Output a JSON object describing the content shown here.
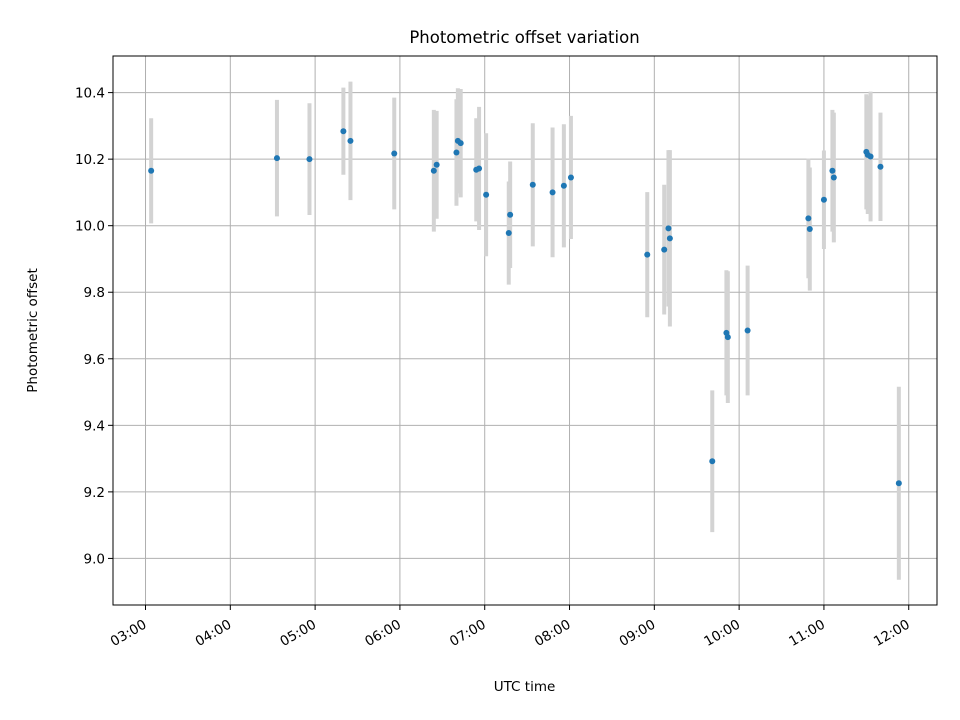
{
  "chart_data": {
    "type": "scatter",
    "title": "Photometric offset variation",
    "xlabel": "UTC time",
    "ylabel": "Photometric offset",
    "x_ticks": [
      "03:00",
      "04:00",
      "05:00",
      "06:00",
      "07:00",
      "08:00",
      "09:00",
      "10:00",
      "11:00",
      "12:00"
    ],
    "y_ticks": [
      "9.0",
      "9.2",
      "9.4",
      "9.6",
      "9.8",
      "10.0",
      "10.2",
      "10.4"
    ],
    "xlim": [
      "02:37",
      "12:20"
    ],
    "ylim": [
      8.86,
      10.51
    ],
    "grid": true,
    "point_color": "#1f77b4",
    "errorbar_color": "#d3d3d3",
    "points": [
      {
        "t": "03:04",
        "y": 10.165,
        "err": 0.158
      },
      {
        "t": "04:33",
        "y": 10.203,
        "err": 0.175
      },
      {
        "t": "04:56",
        "y": 10.2,
        "err": 0.168
      },
      {
        "t": "05:20",
        "y": 10.284,
        "err": 0.131
      },
      {
        "t": "05:25",
        "y": 10.255,
        "err": 0.178
      },
      {
        "t": "05:56",
        "y": 10.217,
        "err": 0.168
      },
      {
        "t": "06:24",
        "y": 10.165,
        "err": 0.183
      },
      {
        "t": "06:26",
        "y": 10.183,
        "err": 0.162
      },
      {
        "t": "06:40",
        "y": 10.22,
        "err": 0.16
      },
      {
        "t": "06:41",
        "y": 10.255,
        "err": 0.158
      },
      {
        "t": "06:43",
        "y": 10.248,
        "err": 0.163
      },
      {
        "t": "06:54",
        "y": 10.168,
        "err": 0.155
      },
      {
        "t": "06:56",
        "y": 10.172,
        "err": 0.185
      },
      {
        "t": "07:01",
        "y": 10.093,
        "err": 0.185
      },
      {
        "t": "07:17",
        "y": 9.978,
        "err": 0.155
      },
      {
        "t": "07:18",
        "y": 10.033,
        "err": 0.16
      },
      {
        "t": "07:34",
        "y": 10.123,
        "err": 0.185
      },
      {
        "t": "07:48",
        "y": 10.1,
        "err": 0.195
      },
      {
        "t": "07:56",
        "y": 10.12,
        "err": 0.185
      },
      {
        "t": "08:01",
        "y": 10.145,
        "err": 0.185
      },
      {
        "t": "08:55",
        "y": 9.913,
        "err": 0.188
      },
      {
        "t": "09:07",
        "y": 9.928,
        "err": 0.195
      },
      {
        "t": "09:10",
        "y": 9.992,
        "err": 0.235
      },
      {
        "t": "09:11",
        "y": 9.962,
        "err": 0.265
      },
      {
        "t": "09:41",
        "y": 9.292,
        "err": 0.213
      },
      {
        "t": "09:51",
        "y": 9.678,
        "err": 0.188
      },
      {
        "t": "09:52",
        "y": 9.665,
        "err": 0.198
      },
      {
        "t": "10:06",
        "y": 9.685,
        "err": 0.195
      },
      {
        "t": "10:49",
        "y": 10.022,
        "err": 0.18
      },
      {
        "t": "10:50",
        "y": 9.99,
        "err": 0.185
      },
      {
        "t": "11:00",
        "y": 10.078,
        "err": 0.148
      },
      {
        "t": "11:06",
        "y": 10.165,
        "err": 0.183
      },
      {
        "t": "11:07",
        "y": 10.145,
        "err": 0.195
      },
      {
        "t": "11:30",
        "y": 10.222,
        "err": 0.173
      },
      {
        "t": "11:31",
        "y": 10.213,
        "err": 0.178
      },
      {
        "t": "11:33",
        "y": 10.208,
        "err": 0.195
      },
      {
        "t": "11:40",
        "y": 10.177,
        "err": 0.163
      },
      {
        "t": "11:53",
        "y": 9.226,
        "err": 0.29
      }
    ]
  }
}
